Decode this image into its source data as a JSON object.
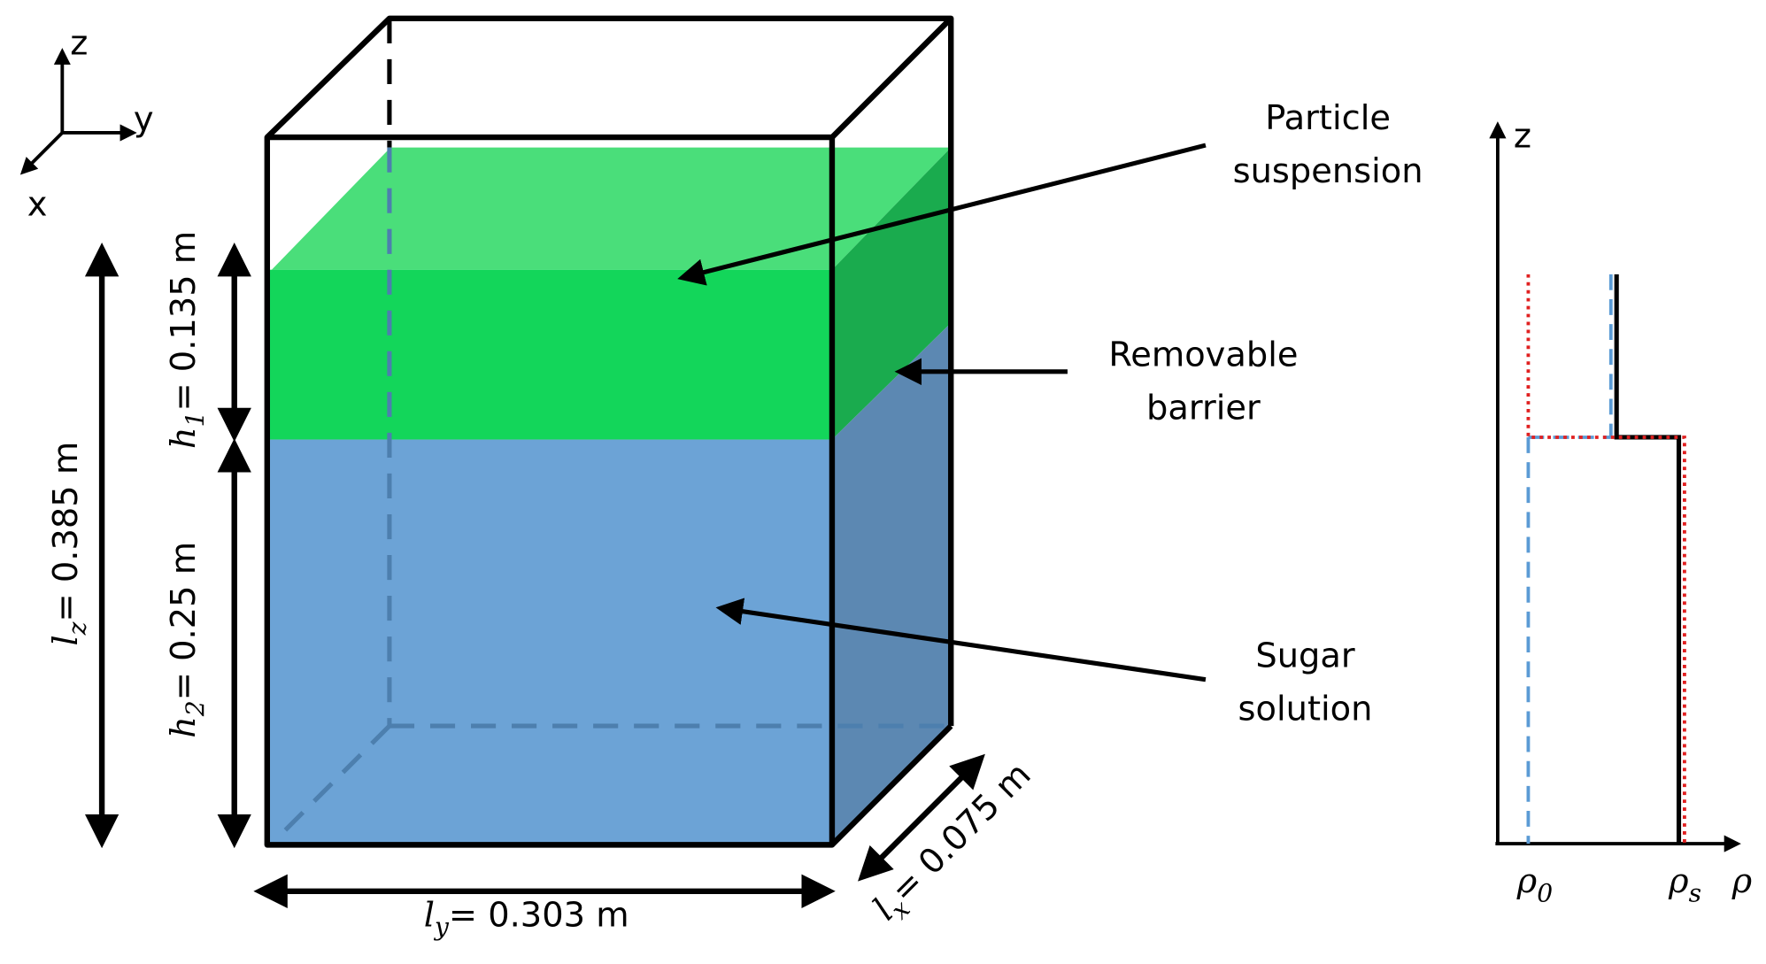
{
  "axes_triad": {
    "z": "z",
    "y": "y",
    "x": "x"
  },
  "annotations": {
    "particle_suspension": [
      "Particle",
      "suspension"
    ],
    "removable_barrier": [
      "Removable",
      "barrier"
    ],
    "sugar_solution": [
      "Sugar",
      "solution"
    ]
  },
  "dimensions": {
    "l_z": {
      "symbol": "l",
      "sub": "z",
      "value": "= 0.385 m"
    },
    "h_1": {
      "symbol": "h",
      "sub": "1",
      "value": "= 0.135 m"
    },
    "h_2": {
      "symbol": "h",
      "sub": "2",
      "value": "= 0.25 m"
    },
    "l_y": {
      "symbol": "l",
      "sub": "y",
      "value": "= 0.303 m"
    },
    "l_x": {
      "symbol": "l",
      "sub": "x",
      "value": "= 0.075 m"
    }
  },
  "profile": {
    "z_label": "z",
    "x_label": "ρ",
    "rho_0": {
      "symbol": "ρ",
      "sub": "0"
    },
    "rho_s": {
      "symbol": "ρ",
      "sub": "s"
    }
  }
}
